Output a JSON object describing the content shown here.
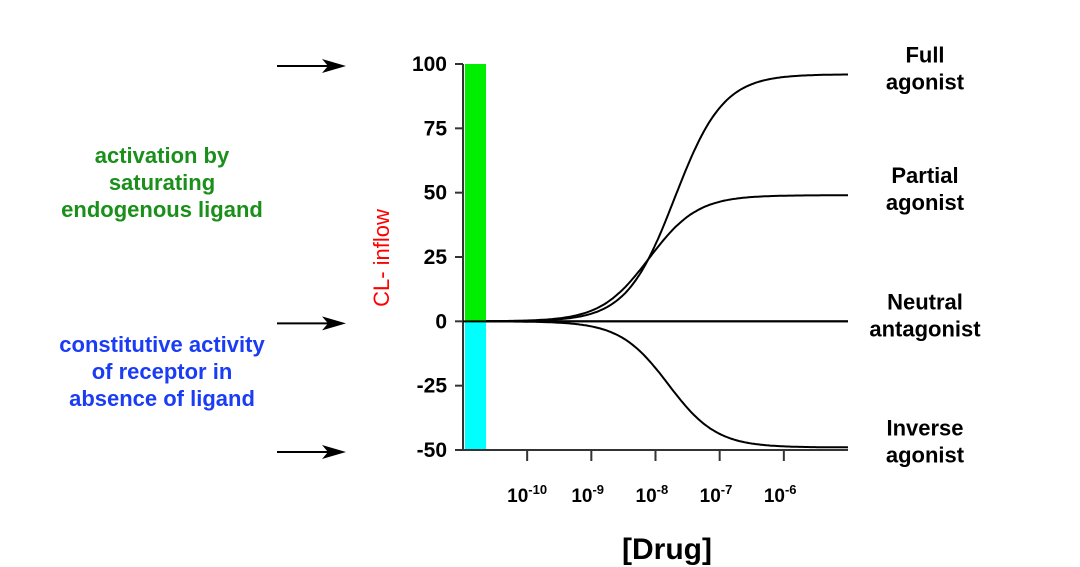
{
  "chart_data": {
    "type": "line",
    "title": "",
    "xlabel": "[Drug]",
    "ylabel": "CL- inflow",
    "x_scale": "log10",
    "xlim_log10": [
      -11,
      -5
    ],
    "ylim": [
      -50,
      100
    ],
    "grid": false,
    "y_ticks": [
      100,
      75,
      50,
      25,
      0,
      -25,
      -50
    ],
    "x_ticks": [
      {
        "base": "10",
        "exponent": "-10",
        "log10": -10
      },
      {
        "base": "10",
        "exponent": "-9",
        "log10": -9
      },
      {
        "base": "10",
        "exponent": "-8",
        "log10": -8
      },
      {
        "base": "10",
        "exponent": "-7",
        "log10": -7
      },
      {
        "base": "10",
        "exponent": "-6",
        "log10": -6
      }
    ],
    "bars": [
      {
        "name": "activation by saturating endogenous ligand",
        "from": 0,
        "to": 100,
        "color": "#00ee00"
      },
      {
        "name": "constitutive activity of receptor in absence of ligand",
        "from": 0,
        "to": -50,
        "color": "#00ffff"
      }
    ],
    "series": [
      {
        "name": "Full agonist",
        "label_lines": [
          "Full",
          "agonist"
        ],
        "bottom": 0,
        "top": 96,
        "log_ec50": -7.7,
        "hill": 1.0
      },
      {
        "name": "Partial agonist",
        "label_lines": [
          "Partial",
          "agonist"
        ],
        "bottom": 0,
        "top": 49,
        "log_ec50": -8.1,
        "hill": 1.0
      },
      {
        "name": "Neutral antagonist",
        "label_lines": [
          "Neutral",
          "antagonist"
        ],
        "bottom": 0,
        "top": 0,
        "log_ec50": -8.0,
        "hill": 1.0
      },
      {
        "name": "Inverse agonist",
        "label_lines": [
          "Inverse",
          "agonist"
        ],
        "bottom": 0,
        "top": -49,
        "log_ec50": -7.8,
        "hill": 1.0
      }
    ],
    "annotations": [
      {
        "text_lines": [
          "activation by",
          "saturating",
          "endogenous ligand"
        ],
        "color": "#1a8f1a"
      },
      {
        "text_lines": [
          "constitutive activity",
          "of receptor in",
          "absence of ligand"
        ],
        "color": "#1a3cf5"
      }
    ],
    "arrows_point_to_y": [
      100,
      0,
      -50
    ],
    "ylabel_color": "#ff0000",
    "curve_color": "#000000"
  }
}
